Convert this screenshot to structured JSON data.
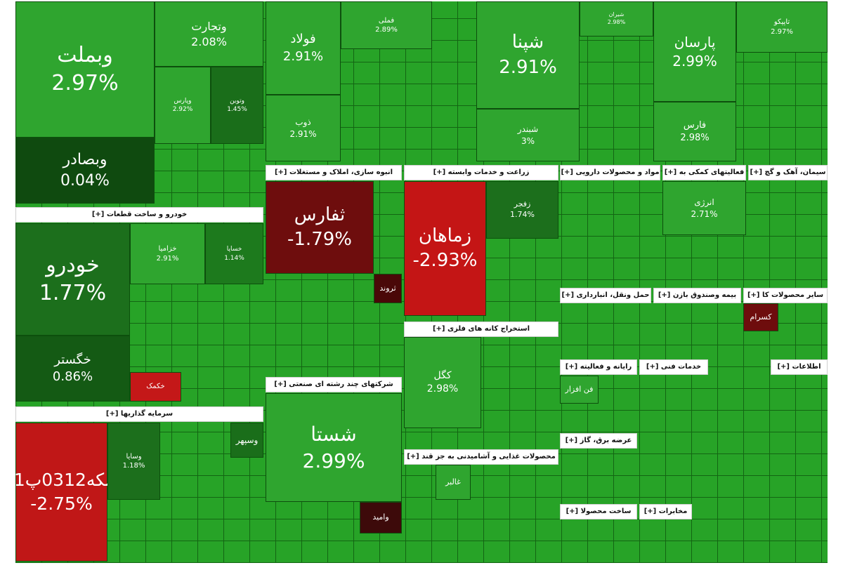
{
  "tiles": [
    {
      "label": "وبملت",
      "change": "2.97%"
    },
    {
      "label": "وتجارت",
      "change": "2.08%"
    },
    {
      "label": "وپارس",
      "change": "2.92%"
    },
    {
      "label": "وتوین",
      "change": "1.45%"
    },
    {
      "label": "وبصادر",
      "change": "0.04%"
    },
    {
      "label": "خودرو",
      "change": "1.77%"
    },
    {
      "label": "خگستر",
      "change": "0.86%"
    },
    {
      "label": "خزامیا",
      "change": "2.91%"
    },
    {
      "label": "خساپا",
      "change": "1.14%"
    },
    {
      "label": "خکمک"
    },
    {
      "label": "سکه0312پ01",
      "change": "-2.75%"
    },
    {
      "label": "وسایا",
      "change": "1.18%"
    },
    {
      "label": "وسپهر"
    },
    {
      "label": "فولاد",
      "change": "2.91%"
    },
    {
      "label": "ذوب",
      "change": "2.91%"
    },
    {
      "label": "فملی",
      "change": "2.89%"
    },
    {
      "label": "ثفارس",
      "change": "-1.79%"
    },
    {
      "label": "ثروند"
    },
    {
      "label": "شستا",
      "change": "2.99%"
    },
    {
      "label": "زماهان",
      "change": "-2.93%"
    },
    {
      "label": "زفجر",
      "change": "1.74%"
    },
    {
      "label": "کگل",
      "change": "2.98%"
    },
    {
      "label": "شپنا",
      "change": "2.91%"
    },
    {
      "label": "شبندر",
      "change": "3%"
    },
    {
      "label": "پارسان",
      "change": "2.99%"
    },
    {
      "label": "فارس",
      "change": "2.98%"
    },
    {
      "label": "تاپیکو",
      "change": "2.97%"
    },
    {
      "label": "انرژی",
      "change": "2.71%"
    },
    {
      "label": "کسرام"
    },
    {
      "label": "شیران",
      "change": "2.98%"
    },
    {
      "label": "وامید"
    },
    {
      "label": "غالبر"
    },
    {
      "label": "فن افزار"
    }
  ],
  "headers": [
    "خودرو و ساخت قطعات [+]",
    "سرمایه گذاریها [+]",
    "انبوه سازی، املاک و مستغلات [+]",
    "شرکتهای چند رشته ای صنعتی [+]",
    "زراعت و خدمات وابسته [+]",
    "استخراج کانه های فلزی [+]",
    "محصولات غذایی و آشامیدنی به جز قند [+]",
    "مواد و محصولات دارویی [+]",
    "فعالیتهای کمکی به [+]",
    "سیمان، آهک و گچ [+]",
    "حمل ونقل، انبارداری [+]",
    "بیمه وصندوق بازن [+]",
    "سایر محصولات کا [+]",
    "رایانه و فعالیته [+]",
    "خدمات فنی [+]",
    "اطلاعات [+]",
    "عرضه برق، گاز [+]",
    "ساخت محصولا [+]",
    "مخابرات [+]"
  ]
}
